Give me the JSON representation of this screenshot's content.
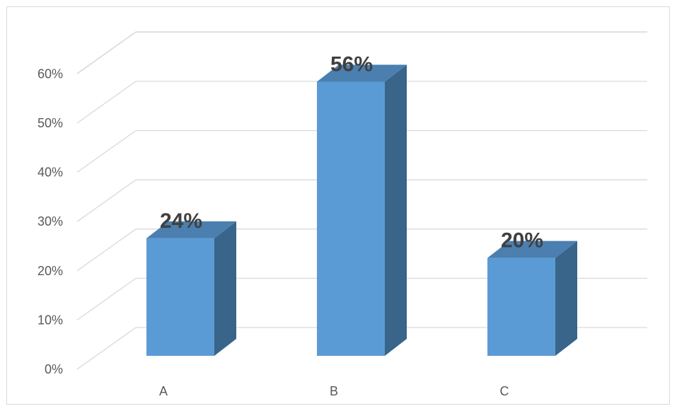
{
  "chart_data": {
    "type": "bar",
    "categories": [
      "A",
      "B",
      "C"
    ],
    "values": [
      24,
      56,
      20
    ],
    "data_labels": [
      "24%",
      "56%",
      "20%"
    ],
    "ylim": [
      0,
      60
    ],
    "y_ticks": [
      "0%",
      "10%",
      "20%",
      "30%",
      "40%",
      "50%",
      "60%"
    ],
    "y_tick_values": [
      0,
      10,
      20,
      30,
      40,
      50,
      60
    ],
    "grid": true,
    "style": "3d-column",
    "colors": {
      "face": "#5b9bd5",
      "side": "#386589",
      "top": "#4a7fb0",
      "grid": "#d9d9d9",
      "text": "#595959",
      "label": "#404040"
    }
  }
}
